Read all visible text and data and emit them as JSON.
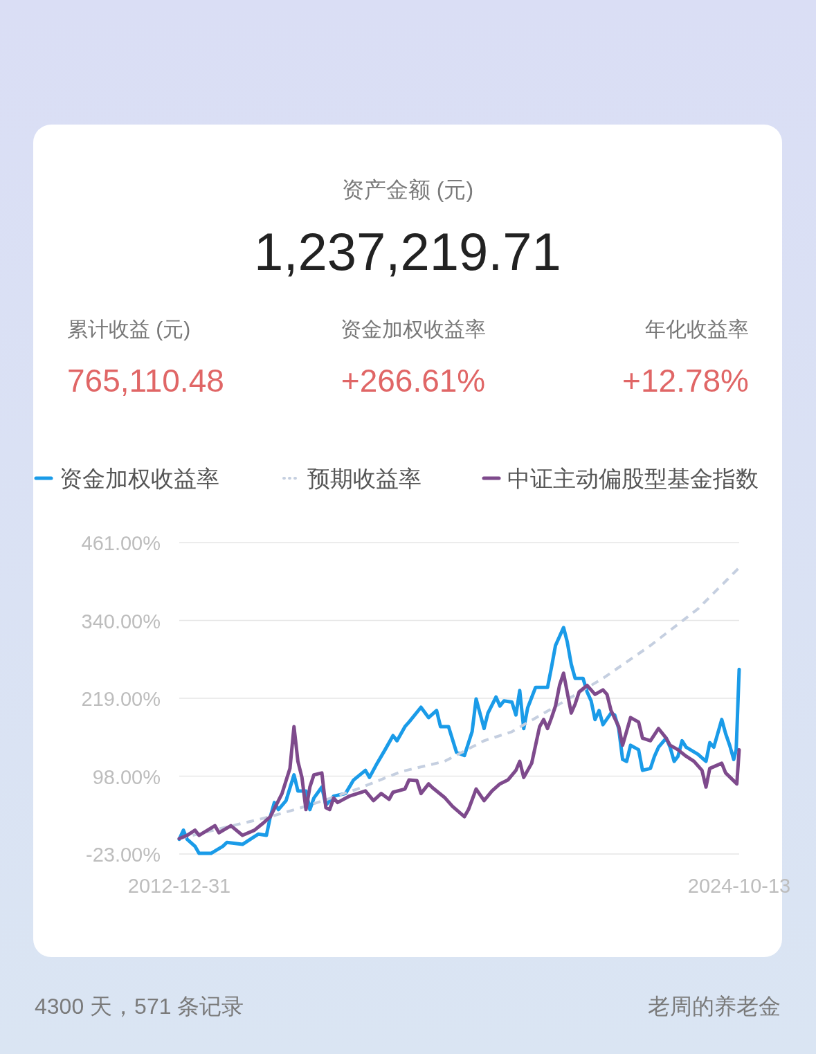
{
  "chart_data": {
    "type": "line",
    "title": "资产金额 (元)",
    "subtitle": "1,237,219.71",
    "annotations": [
      "累计收益 (元)",
      "765,110.48",
      "资金加权收益率",
      "+266.61%",
      "年化收益率",
      "+12.78%",
      "4300 天，571 条记录",
      "老周的养老金"
    ],
    "xlim": [
      "2012-12-31",
      "2024-10-13"
    ],
    "xticks": [
      "2012-12-31",
      "2024-10-13"
    ],
    "ylim": [
      -23,
      461
    ],
    "yticks": [
      {
        "value": -23,
        "label": "-23.00%"
      },
      {
        "value": 98,
        "label": "98.00%"
      },
      {
        "value": 219,
        "label": "219.00%"
      },
      {
        "value": 340,
        "label": "340.00%"
      },
      {
        "value": 461,
        "label": "461.00%"
      }
    ],
    "grid": "y",
    "legend": "top",
    "series": [
      {
        "name": "资金加权收益率",
        "color": "#1a9be8",
        "line_style": "solid",
        "x": [
          "2012-12-31",
          "2013-02",
          "2013-03",
          "2013-05",
          "2013-06",
          "2013-09",
          "2013-12",
          "2014-01",
          "2014-05",
          "2014-07",
          "2014-09",
          "2014-11",
          "2014-12",
          "2015-01",
          "2015-02",
          "2015-04",
          "2015-06",
          "2015-07",
          "2015-09",
          "2015-10",
          "2015-11",
          "2016-01",
          "2016-02",
          "2016-04",
          "2016-07",
          "2016-09",
          "2016-12",
          "2017-01",
          "2017-03",
          "2017-05",
          "2017-07",
          "2017-08",
          "2017-10",
          "2017-11",
          "2018-02",
          "2018-04",
          "2018-06",
          "2018-07",
          "2018-09",
          "2018-11",
          "2019-01",
          "2019-03",
          "2019-04",
          "2019-06",
          "2019-07",
          "2019-09",
          "2019-10",
          "2019-11",
          "2020-01",
          "2020-02",
          "2020-03",
          "2020-04",
          "2020-05",
          "2020-07",
          "2020-10",
          "2020-11",
          "2020-12",
          "2021-02",
          "2021-03",
          "2021-04",
          "2021-05",
          "2021-07",
          "2021-08",
          "2021-09",
          "2021-10",
          "2021-11",
          "2021-12",
          "2022-02",
          "2022-03",
          "2022-04",
          "2022-05",
          "2022-06",
          "2022-07",
          "2022-09",
          "2022-10",
          "2022-12",
          "2023-01",
          "2023-02",
          "2023-04",
          "2023-05",
          "2023-06",
          "2023-07",
          "2023-08",
          "2023-09",
          "2023-12",
          "2024-02",
          "2024-03",
          "2024-04",
          "2024-06",
          "2024-07",
          "2024-08",
          "2024-09",
          "2024-09-20",
          "2024-10-13"
        ],
        "values": [
          0,
          14,
          0,
          -11,
          -22,
          -22,
          -11,
          -5,
          -8,
          0,
          8,
          6,
          35,
          57,
          46,
          60,
          100,
          75,
          75,
          46,
          64,
          81,
          53,
          67,
          71,
          92,
          107,
          96,
          118,
          139,
          161,
          153,
          175,
          182,
          205,
          189,
          200,
          175,
          175,
          135,
          130,
          167,
          218,
          172,
          196,
          221,
          207,
          215,
          213,
          193,
          231,
          172,
          204,
          236,
          236,
          268,
          301,
          329,
          307,
          272,
          250,
          250,
          229,
          215,
          186,
          200,
          178,
          196,
          193,
          172,
          124,
          121,
          146,
          139,
          107,
          110,
          129,
          143,
          157,
          143,
          121,
          129,
          153,
          143,
          132,
          121,
          150,
          143,
          186,
          164,
          146,
          124,
          139,
          264
        ]
      },
      {
        "name": "预期收益率",
        "color": "#c5cfe0",
        "line_style": "dashed",
        "x": [
          "2012-12-31",
          "2014-01",
          "2014-12",
          "2015-10",
          "2016-10",
          "2017-09",
          "2018-08",
          "2019-06",
          "2020-01",
          "2021-01",
          "2021-12",
          "2022-12",
          "2023-12",
          "2024-10-13"
        ],
        "values": [
          1,
          19,
          35,
          53,
          78,
          105,
          121,
          153,
          167,
          210,
          250,
          301,
          358,
          422
        ]
      },
      {
        "name": "中证主动偏股型基金指数",
        "color": "#7e4a8c",
        "line_style": "solid",
        "x": [
          "2012-12-31",
          "2013-03",
          "2013-05",
          "2013-06",
          "2013-10",
          "2013-11",
          "2014-02",
          "2014-05",
          "2014-08",
          "2014-10",
          "2014-12",
          "2015-03",
          "2015-05",
          "2015-06",
          "2015-07",
          "2015-08",
          "2015-09",
          "2015-10",
          "2015-11",
          "2016-01",
          "2016-02",
          "2016-03",
          "2016-04",
          "2016-05",
          "2016-08",
          "2016-10",
          "2016-12",
          "2017-02",
          "2017-04",
          "2017-06",
          "2017-07",
          "2017-10",
          "2017-11",
          "2018-01",
          "2018-02",
          "2018-04",
          "2018-05",
          "2018-08",
          "2018-10",
          "2019-01",
          "2019-02",
          "2019-04",
          "2019-06",
          "2019-08",
          "2019-10",
          "2019-12",
          "2020-02",
          "2020-03",
          "2020-04",
          "2020-06",
          "2020-08",
          "2020-09",
          "2020-10",
          "2020-11",
          "2020-12",
          "2021-01",
          "2021-02",
          "2021-04",
          "2021-05",
          "2021-06",
          "2021-08",
          "2021-10",
          "2021-12",
          "2022-01",
          "2022-02",
          "2022-04",
          "2022-05",
          "2022-07",
          "2022-09",
          "2022-10",
          "2022-12",
          "2023-02",
          "2023-04",
          "2023-05",
          "2023-07",
          "2023-09",
          "2023-11",
          "2024-01",
          "2024-02",
          "2024-03",
          "2024-06",
          "2024-07",
          "2024-09-25",
          "2024-10-13"
        ],
        "values": [
          1,
          6,
          14,
          6,
          21,
          10,
          21,
          6,
          14,
          24,
          35,
          71,
          110,
          175,
          121,
          96,
          46,
          81,
          100,
          103,
          49,
          46,
          64,
          57,
          67,
          71,
          75,
          60,
          71,
          62,
          73,
          78,
          92,
          91,
          71,
          86,
          80,
          65,
          51,
          35,
          46,
          78,
          60,
          75,
          86,
          92,
          107,
          121,
          96,
          118,
          175,
          186,
          172,
          189,
          207,
          239,
          258,
          196,
          210,
          229,
          239,
          225,
          232,
          225,
          200,
          175,
          146,
          189,
          182,
          157,
          153,
          172,
          157,
          146,
          139,
          129,
          121,
          107,
          81,
          110,
          118,
          103,
          86,
          139
        ]
      }
    ]
  }
}
